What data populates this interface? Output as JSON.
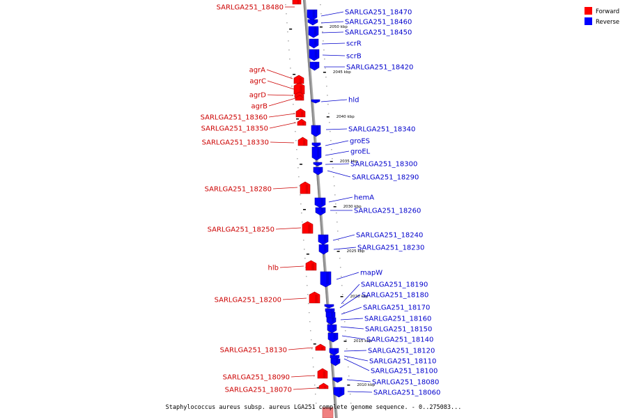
{
  "caption": "Staphylococcus aureus subsp. aureus LGA251 complete genome sequence. - 0..275083...",
  "legend": [
    {
      "label": "Forward",
      "color": "#ff0000"
    },
    {
      "label": "Reverse",
      "color": "#0000ff"
    }
  ],
  "colors": {
    "forward": "#ff0000",
    "reverse": "#0000ff",
    "forward_label": "#cc0000",
    "reverse_label": "#0000cc",
    "backbone": "#888888"
  },
  "ticks": [
    "2050 kbp",
    "2045 kbp",
    "2040 kbp",
    "2035 kbp",
    "2030 kbp",
    "2025 kbp",
    "2020 kbp",
    "2015 kbp",
    "2010 kbp"
  ],
  "forward_genes": [
    "SARLGA251_18480",
    "agrA",
    "agrC",
    "agrD",
    "agrB",
    "SARLGA251_18360",
    "SARLGA251_18350",
    "SARLGA251_18330",
    "SARLGA251_18280",
    "SARLGA251_18250",
    "hlb",
    "SARLGA251_18200",
    "SARLGA251_18130",
    "SARLGA251_18090",
    "SARLGA251_18070"
  ],
  "reverse_genes": [
    "SARLGA251_18470",
    "SARLGA251_18460",
    "SARLGA251_18450",
    "scrR",
    "scrB",
    "SARLGA251_18420",
    "hld",
    "SARLGA251_18340",
    "groES",
    "groEL",
    "SARLGA251_18300",
    "SARLGA251_18290",
    "hemA",
    "SARLGA251_18260",
    "SARLGA251_18240",
    "SARLGA251_18230",
    "mapW",
    "SARLGA251_18190",
    "SARLGA251_18180",
    "SARLGA251_18170",
    "SARLGA251_18160",
    "SARLGA251_18150",
    "SARLGA251_18140",
    "SARLGA251_18120",
    "SARLGA251_18110",
    "SARLGA251_18100",
    "SARLGA251_18080",
    "SARLGA251_18060"
  ]
}
